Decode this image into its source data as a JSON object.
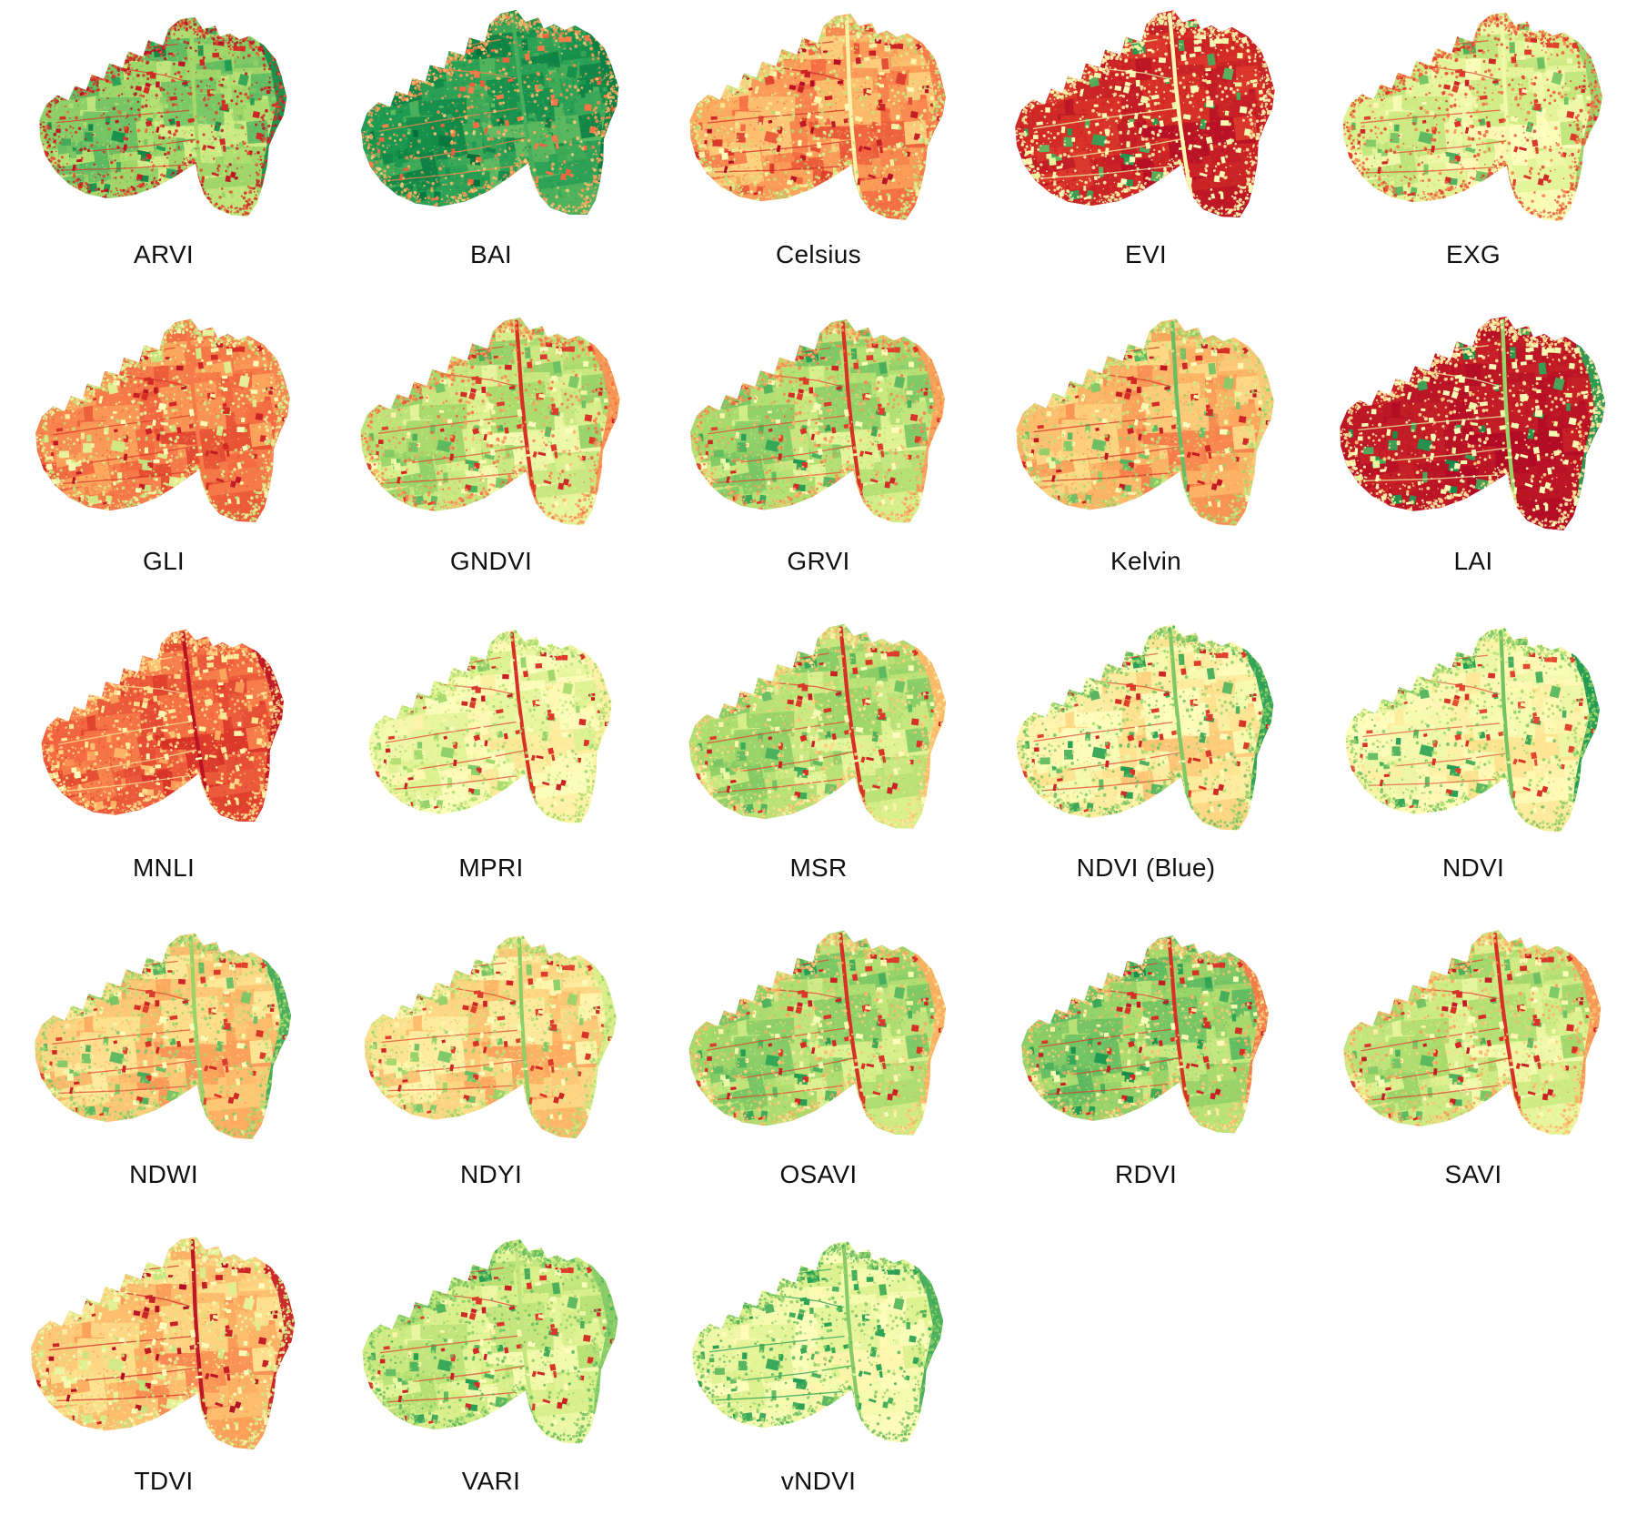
{
  "figure": {
    "description": "Grid of UAV orthomosaic vegetation index maps of the same field survey, each colored with a red-yellow-green colormap",
    "background_color": "#ffffff",
    "label_color": "#111111",
    "colormap": {
      "name": "RdYlGn",
      "stops": [
        "#a50026",
        "#d73027",
        "#f46d43",
        "#fdae61",
        "#fee08b",
        "#ffffbf",
        "#d9ef8b",
        "#a6d96a",
        "#66bd63",
        "#1a9850",
        "#006837"
      ]
    },
    "grid": {
      "columns": 5,
      "rows": 5,
      "panel_count": 23
    },
    "panels": [
      {
        "label": "ARVI",
        "style": {
          "field_low": 0.6,
          "field_high": 0.82,
          "road": 0.7,
          "edge_band": 0.92,
          "buildings": 0.07,
          "structures": 0.72,
          "patches": 0.9,
          "speckle": 0.1
        }
      },
      {
        "label": "BAI",
        "style": {
          "field_low": 0.8,
          "field_high": 0.95,
          "road": 0.84,
          "edge_band": 0.95,
          "buildings": 0.2,
          "structures": 0.85,
          "patches": 0.95,
          "speckle": 0.3
        }
      },
      {
        "label": "Celsius",
        "style": {
          "field_low": 0.16,
          "field_high": 0.38,
          "road": 0.46,
          "edge_band": 0.22,
          "buildings": 0.05,
          "structures": 0.45,
          "patches": 0.15,
          "speckle": 0.62
        }
      },
      {
        "label": "EVI",
        "style": {
          "field_low": 0.03,
          "field_high": 0.12,
          "road": 0.48,
          "edge_band": 0.07,
          "buildings": 0.5,
          "structures": 0.52,
          "patches": 0.85,
          "speckle": 0.5
        }
      },
      {
        "label": "EXG",
        "style": {
          "field_low": 0.48,
          "field_high": 0.66,
          "road": 0.54,
          "edge_band": 0.72,
          "buildings": 0.1,
          "structures": 0.52,
          "patches": 0.8,
          "speckle": 0.18
        }
      },
      {
        "label": "GLI",
        "style": {
          "field_low": 0.14,
          "field_high": 0.3,
          "road": 0.22,
          "edge_band": 0.24,
          "buildings": 0.07,
          "structures": 0.48,
          "patches": 0.6,
          "speckle": 0.6
        }
      },
      {
        "label": "GNDVI",
        "style": {
          "field_low": 0.52,
          "field_high": 0.74,
          "road": 0.1,
          "edge_band": 0.26,
          "buildings": 0.1,
          "structures": 0.5,
          "patches": 0.8,
          "speckle": 0.25
        }
      },
      {
        "label": "GRVI",
        "style": {
          "field_low": 0.56,
          "field_high": 0.78,
          "road": 0.1,
          "edge_band": 0.28,
          "buildings": 0.1,
          "structures": 0.5,
          "patches": 0.85,
          "speckle": 0.28
        }
      },
      {
        "label": "Kelvin",
        "style": {
          "field_low": 0.22,
          "field_high": 0.4,
          "road": 0.8,
          "edge_band": 0.35,
          "buildings": 0.07,
          "structures": 0.5,
          "patches": 0.78,
          "speckle": 0.66
        }
      },
      {
        "label": "LAI",
        "style": {
          "field_low": 0.02,
          "field_high": 0.07,
          "road": 0.72,
          "edge_band": 0.88,
          "buildings": 0.5,
          "structures": 0.52,
          "patches": 0.88,
          "speckle": 0.45
        }
      },
      {
        "label": "MNLI",
        "style": {
          "field_low": 0.1,
          "field_high": 0.24,
          "road": 0.04,
          "edge_band": 0.05,
          "buildings": 0.4,
          "structures": 0.46,
          "patches": 0.3,
          "speckle": 0.38
        }
      },
      {
        "label": "MPRI",
        "style": {
          "field_low": 0.42,
          "field_high": 0.6,
          "road": 0.1,
          "edge_band": 0.45,
          "buildings": 0.09,
          "structures": 0.5,
          "patches": 0.72,
          "speckle": 0.66
        }
      },
      {
        "label": "MSR",
        "style": {
          "field_low": 0.56,
          "field_high": 0.76,
          "road": 0.1,
          "edge_band": 0.32,
          "buildings": 0.09,
          "structures": 0.5,
          "patches": 0.82,
          "speckle": 0.38
        }
      },
      {
        "label": "NDVI (Blue)",
        "style": {
          "field_low": 0.34,
          "field_high": 0.54,
          "road": 0.76,
          "edge_band": 0.88,
          "buildings": 0.1,
          "structures": 0.5,
          "patches": 0.85,
          "speckle": 0.74
        }
      },
      {
        "label": "NDVI",
        "style": {
          "field_low": 0.4,
          "field_high": 0.56,
          "road": 0.78,
          "edge_band": 0.9,
          "buildings": 0.12,
          "structures": 0.5,
          "patches": 0.85,
          "speckle": 0.72
        }
      },
      {
        "label": "NDWI",
        "style": {
          "field_low": 0.26,
          "field_high": 0.44,
          "road": 0.72,
          "edge_band": 0.85,
          "buildings": 0.1,
          "structures": 0.48,
          "patches": 0.8,
          "speckle": 0.7
        }
      },
      {
        "label": "NDYI",
        "style": {
          "field_low": 0.28,
          "field_high": 0.48,
          "road": 0.74,
          "edge_band": 0.6,
          "buildings": 0.1,
          "structures": 0.5,
          "patches": 0.75,
          "speckle": 0.66
        }
      },
      {
        "label": "OSAVI",
        "style": {
          "field_low": 0.58,
          "field_high": 0.78,
          "road": 0.1,
          "edge_band": 0.3,
          "buildings": 0.09,
          "structures": 0.5,
          "patches": 0.85,
          "speckle": 0.35
        }
      },
      {
        "label": "RDVI",
        "style": {
          "field_low": 0.62,
          "field_high": 0.82,
          "road": 0.1,
          "edge_band": 0.22,
          "buildings": 0.08,
          "structures": 0.48,
          "patches": 0.88,
          "speckle": 0.35
        }
      },
      {
        "label": "SAVI",
        "style": {
          "field_low": 0.52,
          "field_high": 0.72,
          "road": 0.1,
          "edge_band": 0.26,
          "buildings": 0.08,
          "structures": 0.48,
          "patches": 0.8,
          "speckle": 0.32
        }
      },
      {
        "label": "TDVI",
        "style": {
          "field_low": 0.24,
          "field_high": 0.42,
          "road": 0.05,
          "edge_band": 0.07,
          "buildings": 0.05,
          "structures": 0.48,
          "patches": 0.6,
          "speckle": 0.58
        }
      },
      {
        "label": "VARI",
        "style": {
          "field_low": 0.52,
          "field_high": 0.68,
          "road": 0.64,
          "edge_band": 0.75,
          "buildings": 0.09,
          "structures": 0.5,
          "patches": 0.85,
          "speckle": 0.76
        }
      },
      {
        "label": "vNDVI",
        "style": {
          "field_low": 0.46,
          "field_high": 0.6,
          "road": 0.75,
          "edge_band": 0.85,
          "buildings": 0.85,
          "structures": 0.52,
          "patches": 0.85,
          "speckle": 0.76
        }
      }
    ]
  }
}
